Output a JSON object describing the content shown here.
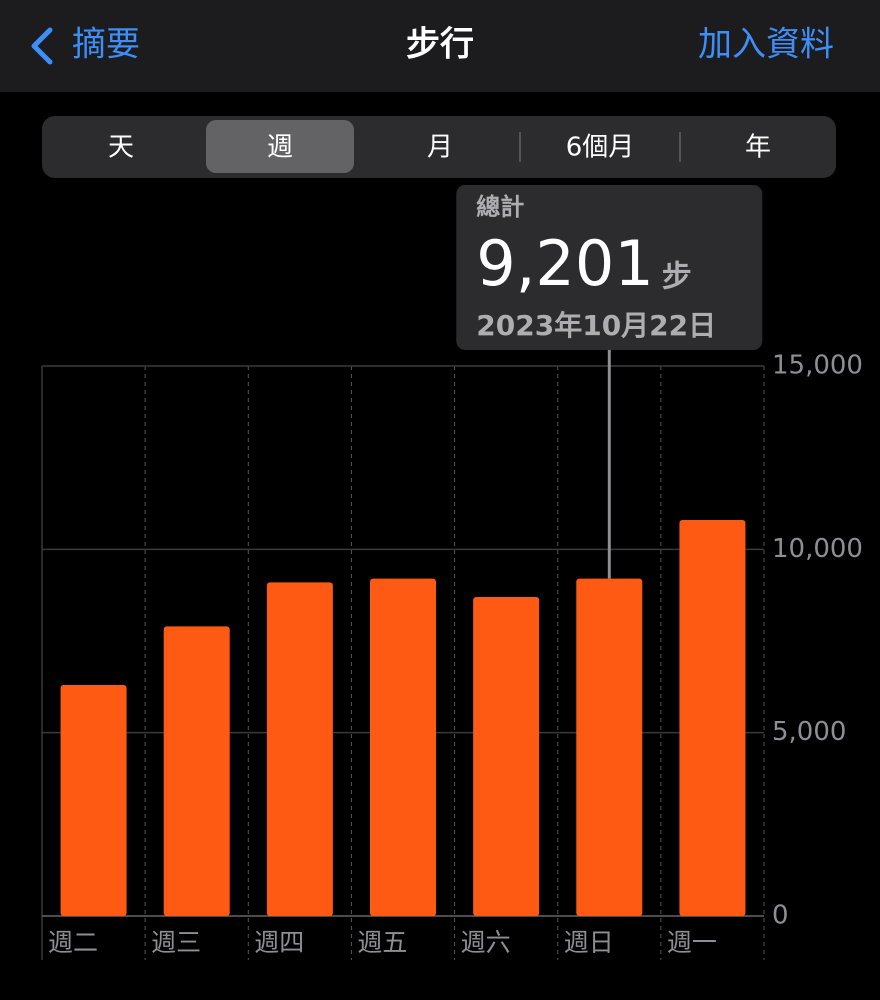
{
  "nav": {
    "back": "摘要",
    "title": "步行",
    "action": "加入資料"
  },
  "segments": [
    "天",
    "週",
    "月",
    "6個月",
    "年"
  ],
  "chart_data": {
    "type": "bar",
    "categories": [
      "週二",
      "週三",
      "週四",
      "週五",
      "週六",
      "週日",
      "週一"
    ],
    "values": [
      6300,
      7900,
      9100,
      9200,
      8700,
      9201,
      10800
    ],
    "value_labels": [
      null,
      null,
      null,
      null,
      null,
      "9,201",
      null
    ],
    "color": "#ff5a14",
    "ylim": [
      0,
      15000
    ],
    "yticks": [
      0,
      {
        "value": 5000,
        "label": "5,000"
      },
      {
        "value": 10000,
        "label": "10,000"
      },
      {
        "value": 15000,
        "label": "15,000"
      }
    ],
    "grid": true,
    "tooltip": {
      "title": "總計",
      "unit": "步",
      "date": "2023年10月22日"
    }
  }
}
